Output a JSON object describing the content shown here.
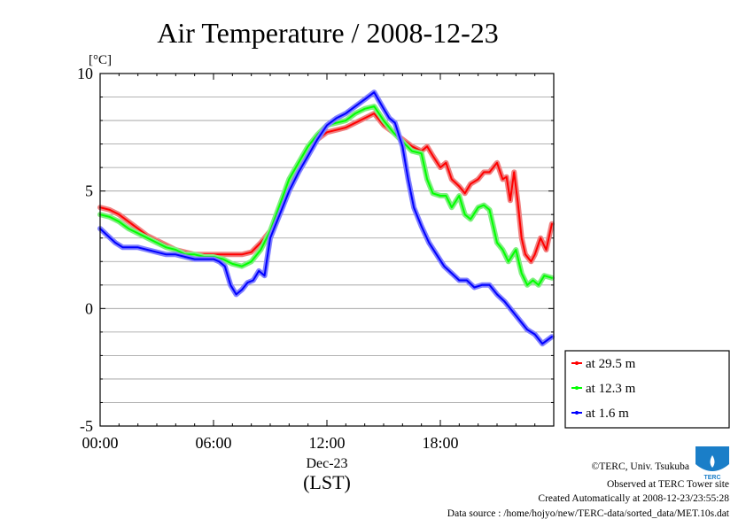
{
  "chart_data": {
    "type": "line",
    "title": "Air Temperature / 2008-12-23",
    "ylabel_unit": "[°C]",
    "ylim": [
      -5,
      10
    ],
    "yticks": [
      {
        "value": -5,
        "label": "-5"
      },
      {
        "value": 0,
        "label": "0"
      },
      {
        "value": 5,
        "label": "5"
      },
      {
        "value": 10,
        "label": "10"
      }
    ],
    "xlim": [
      0,
      24
    ],
    "xticks": [
      {
        "value": 0,
        "label": "00:00"
      },
      {
        "value": 6,
        "label": "06:00"
      },
      {
        "value": 12,
        "label": "12:00"
      },
      {
        "value": 18,
        "label": "18:00"
      }
    ],
    "x_date_label": "Dec-23",
    "x_timezone_label": "(LST)",
    "grid": true,
    "legend_position": "right",
    "series": [
      {
        "name": "at 29.5 m",
        "color": "#ff0000",
        "band": "#f08080",
        "x": [
          0,
          0.5,
          1,
          1.5,
          2,
          2.5,
          3,
          3.5,
          4,
          4.5,
          5,
          5.5,
          6,
          6.5,
          7,
          7.5,
          8,
          8.5,
          9,
          9.5,
          10,
          10.5,
          11,
          11.5,
          12,
          12.5,
          13,
          13.5,
          14,
          14.5,
          15,
          15.5,
          16,
          16.5,
          17,
          17.3,
          17.6,
          18,
          18.3,
          18.6,
          19,
          19.3,
          19.6,
          20,
          20.3,
          20.6,
          21,
          21.3,
          21.5,
          21.7,
          21.9,
          22.1,
          22.3,
          22.5,
          22.8,
          23,
          23.3,
          23.6,
          23.9
        ],
        "y": [
          4.3,
          4.2,
          4.0,
          3.7,
          3.4,
          3.1,
          2.9,
          2.7,
          2.5,
          2.4,
          2.3,
          2.3,
          2.3,
          2.3,
          2.3,
          2.3,
          2.4,
          2.8,
          3.3,
          4.2,
          5.3,
          5.9,
          6.6,
          7.2,
          7.5,
          7.6,
          7.7,
          7.9,
          8.1,
          8.3,
          7.8,
          7.5,
          7.2,
          6.9,
          6.7,
          6.9,
          6.5,
          6.0,
          6.2,
          5.5,
          5.2,
          4.9,
          5.3,
          5.5,
          5.8,
          5.8,
          6.2,
          5.5,
          5.6,
          4.6,
          5.8,
          4.5,
          3.0,
          2.3,
          2.0,
          2.3,
          3.0,
          2.5,
          3.6
        ]
      },
      {
        "name": "at 12.3 m",
        "color": "#00ff00",
        "band": "#80ee80",
        "x": [
          0,
          0.5,
          1,
          1.5,
          2,
          2.5,
          3,
          3.5,
          4,
          4.5,
          5,
          5.5,
          6,
          6.5,
          7,
          7.5,
          8,
          8.5,
          9,
          9.5,
          10,
          10.5,
          11,
          11.5,
          12,
          12.5,
          13,
          13.5,
          14,
          14.5,
          15,
          15.5,
          16,
          16.5,
          17,
          17.3,
          17.6,
          18,
          18.3,
          18.6,
          19,
          19.3,
          19.6,
          20,
          20.3,
          20.6,
          21,
          21.3,
          21.6,
          22,
          22.3,
          22.6,
          22.9,
          23.2,
          23.5,
          23.9
        ],
        "y": [
          4.0,
          3.9,
          3.7,
          3.4,
          3.2,
          3.0,
          2.8,
          2.6,
          2.5,
          2.3,
          2.3,
          2.2,
          2.2,
          2.1,
          1.9,
          1.8,
          2.0,
          2.5,
          3.3,
          4.4,
          5.5,
          6.2,
          6.9,
          7.4,
          7.8,
          7.9,
          8.0,
          8.3,
          8.5,
          8.6,
          8.0,
          7.5,
          7.1,
          6.7,
          6.6,
          5.5,
          4.9,
          4.8,
          4.8,
          4.3,
          4.8,
          4.0,
          3.8,
          4.3,
          4.4,
          4.2,
          2.8,
          2.5,
          2.0,
          2.5,
          1.5,
          1.0,
          1.2,
          1.0,
          1.4,
          1.3
        ]
      },
      {
        "name": "at 1.6 m",
        "color": "#0000ff",
        "band": "#8080ff",
        "x": [
          0,
          0.4,
          0.8,
          1.2,
          1.6,
          2,
          2.5,
          3,
          3.5,
          4,
          4.5,
          5,
          5.5,
          6,
          6.3,
          6.6,
          6.9,
          7.2,
          7.5,
          7.8,
          8.1,
          8.4,
          8.7,
          9,
          9.5,
          10,
          10.5,
          11,
          11.5,
          12,
          12.5,
          13,
          13.5,
          14,
          14.5,
          15,
          15.3,
          15.6,
          16,
          16.3,
          16.6,
          17,
          17.4,
          17.8,
          18.2,
          18.6,
          19,
          19.4,
          19.8,
          20.2,
          20.6,
          21,
          21.4,
          21.8,
          22.2,
          22.6,
          23,
          23.4,
          23.9
        ],
        "y": [
          3.4,
          3.1,
          2.8,
          2.6,
          2.6,
          2.6,
          2.5,
          2.4,
          2.3,
          2.3,
          2.2,
          2.1,
          2.1,
          2.1,
          2.0,
          1.8,
          1.0,
          0.6,
          0.8,
          1.1,
          1.2,
          1.6,
          1.4,
          3.0,
          4.0,
          5.0,
          5.8,
          6.5,
          7.2,
          7.8,
          8.1,
          8.3,
          8.6,
          8.9,
          9.2,
          8.5,
          8.1,
          7.9,
          6.9,
          5.5,
          4.3,
          3.5,
          2.8,
          2.3,
          1.8,
          1.5,
          1.2,
          1.2,
          0.9,
          1.0,
          1.0,
          0.6,
          0.3,
          -0.1,
          -0.5,
          -0.9,
          -1.1,
          -1.5,
          -1.2
        ]
      }
    ]
  },
  "footer": {
    "credit": "©TERC, Univ. Tsukuba",
    "site": "Observed at TERC Tower site",
    "created": "Created Automatically at 2008-12-23/23:55:28",
    "source": "Data source : /home/hojyo/new/TERC-data/sorted_data/MET.10s.dat"
  },
  "logo": {
    "text": "TERC",
    "color": "#1a7ec8"
  }
}
